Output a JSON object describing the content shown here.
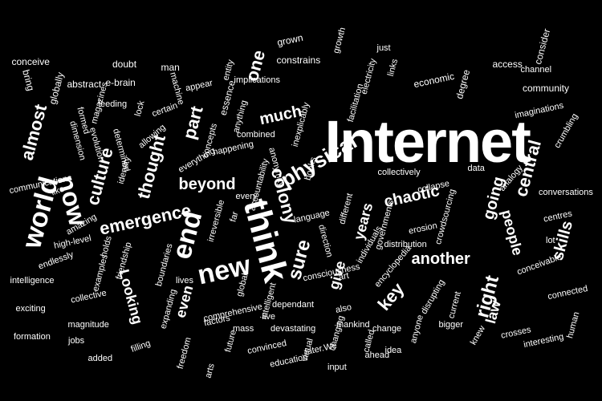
{
  "cloud": {
    "background": "#000000",
    "text_color": "#ffffff",
    "words": [
      "Internet",
      "think",
      "world",
      "now",
      "end",
      "new",
      "emergence",
      "beyond",
      "physical",
      "colony",
      "chaotic",
      "central",
      "skills",
      "people",
      "another",
      "right",
      "key",
      "law",
      "going",
      "years",
      "give",
      "sure",
      "much",
      "one",
      "part",
      "thought",
      "culture",
      "almost",
      "Looking",
      "even",
      "conceive",
      "bring",
      "globally",
      "abstract",
      "doubt",
      "e-brain",
      "man",
      "machine",
      "certain",
      "appear",
      "entity",
      "essence",
      "grown",
      "growth",
      "just",
      "constrains",
      "electricity",
      "links",
      "economic",
      "degree",
      "access",
      "consider",
      "channel",
      "community",
      "imaginations",
      "crumbling",
      "facilitation",
      "inexplicably",
      "implications",
      "anything",
      "combined",
      "anonymity",
      "happening",
      "concepts",
      "everything",
      "determined",
      "evolution",
      "feeding",
      "magazines",
      "formed",
      "dimension",
      "identity",
      "lock",
      "allowing",
      "communications",
      "like",
      "amazing",
      "high-level",
      "endlessly",
      "intelligence",
      "exciting",
      "formation",
      "jobs",
      "magnitude",
      "collective",
      "added",
      "filling",
      "freedom",
      "expanding",
      "examples",
      "friendship",
      "holds",
      "boundaries",
      "lives",
      "irreversible",
      "far",
      "every",
      "accountability",
      "books",
      "language",
      "direction",
      "consciousness",
      "global",
      "live",
      "dependant",
      "intelligent",
      "comprehensive",
      "factors",
      "mass",
      "devastating",
      "future",
      "convinced",
      "education",
      "later.We",
      "input",
      "ahead",
      "called",
      "mankind",
      "also",
      "changing",
      "change",
      "idea",
      "anyone",
      "bigger",
      "current",
      "disrupting",
      "knew",
      "crosses",
      "interesting",
      "human",
      "connected",
      "conceivable",
      "centres",
      "lot",
      "conversations",
      "analogy",
      "data",
      "collectively",
      "collapse",
      "crowdsourcing",
      "erosion",
      "distribution",
      "governments",
      "individuals",
      "different",
      "encyclopedia",
      "art",
      "arts",
      "virtual"
    ]
  }
}
